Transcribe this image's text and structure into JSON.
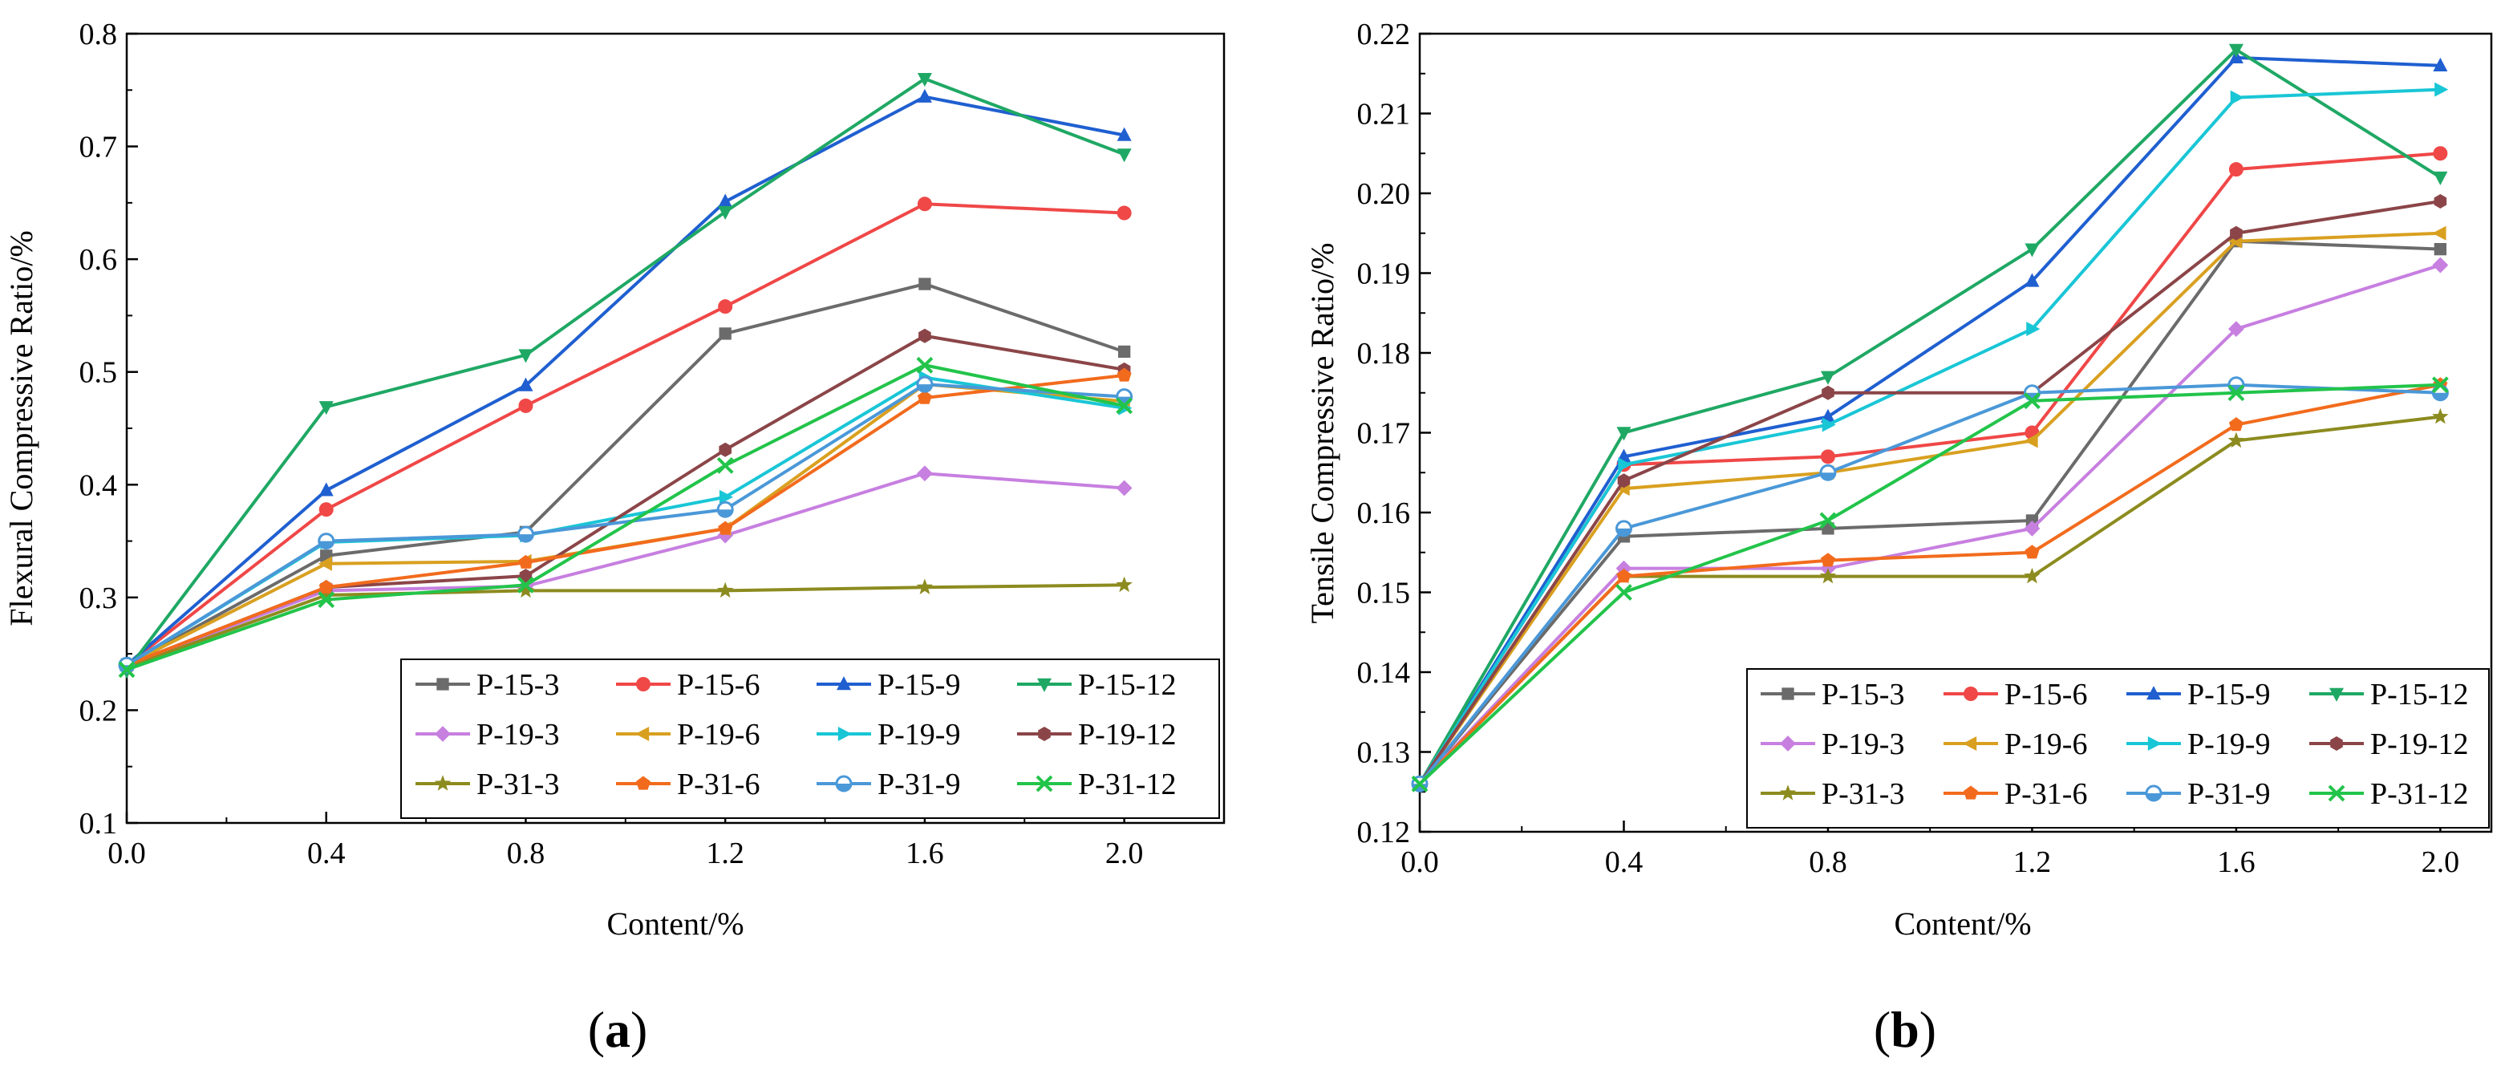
{
  "chart_data": [
    {
      "type": "line",
      "panel_label": "(a)",
      "panel_label_parts": [
        "(",
        "a",
        ")"
      ],
      "xlabel": "Content/%",
      "ylabel": "Flexural Compressive Ratio/%",
      "xlim": [
        0.0,
        2.2
      ],
      "ylim": [
        0.1,
        0.8
      ],
      "x_ticks": [
        0.0,
        0.4,
        0.8,
        1.2,
        1.6,
        2.0
      ],
      "x_tick_labels": [
        "0.0",
        "0.4",
        "0.8",
        "1.2",
        "1.6",
        "2.0"
      ],
      "y_ticks": [
        0.1,
        0.2,
        0.3,
        0.4,
        0.5,
        0.6,
        0.7,
        0.8
      ],
      "y_tick_labels": [
        "0.1",
        "0.2",
        "0.3",
        "0.4",
        "0.5",
        "0.6",
        "0.7",
        "0.8"
      ],
      "grid": false,
      "legend_position": "bottom-right",
      "x": [
        0.0,
        0.4,
        0.8,
        1.2,
        1.6,
        2.0
      ],
      "series": [
        {
          "name": "P-15-3",
          "color": "#6b6b6b",
          "marker": "square",
          "values": [
            0.24,
            0.337,
            0.358,
            0.534,
            0.578,
            0.518
          ]
        },
        {
          "name": "P-15-6",
          "color": "#f04747",
          "marker": "circle",
          "values": [
            0.24,
            0.378,
            0.47,
            0.558,
            0.649,
            0.641
          ]
        },
        {
          "name": "P-15-9",
          "color": "#1f5fd0",
          "marker": "triangle-up",
          "values": [
            0.24,
            0.395,
            0.488,
            0.651,
            0.744,
            0.71
          ]
        },
        {
          "name": "P-15-12",
          "color": "#1fa864",
          "marker": "triangle-down",
          "values": [
            0.235,
            0.469,
            0.515,
            0.642,
            0.76,
            0.693
          ]
        },
        {
          "name": "P-19-3",
          "color": "#c77fe0",
          "marker": "diamond",
          "values": [
            0.24,
            0.306,
            0.31,
            0.355,
            0.41,
            0.397
          ]
        },
        {
          "name": "P-19-6",
          "color": "#d9a020",
          "marker": "triangle-left",
          "values": [
            0.24,
            0.33,
            0.332,
            0.361,
            0.489,
            0.474
          ]
        },
        {
          "name": "P-19-9",
          "color": "#19c6d6",
          "marker": "triangle-right",
          "values": [
            0.24,
            0.349,
            0.355,
            0.389,
            0.495,
            0.468
          ]
        },
        {
          "name": "P-19-12",
          "color": "#8b4548",
          "marker": "hexagon",
          "values": [
            0.24,
            0.309,
            0.319,
            0.431,
            0.532,
            0.502
          ]
        },
        {
          "name": "P-31-3",
          "color": "#8c8b1f",
          "marker": "star",
          "values": [
            0.238,
            0.302,
            0.306,
            0.306,
            0.309,
            0.311
          ]
        },
        {
          "name": "P-31-6",
          "color": "#f26b1d",
          "marker": "pentagon",
          "values": [
            0.24,
            0.309,
            0.331,
            0.361,
            0.477,
            0.497
          ]
        },
        {
          "name": "P-31-9",
          "color": "#4a98d8",
          "marker": "half-circle",
          "values": [
            0.24,
            0.35,
            0.356,
            0.378,
            0.489,
            0.478
          ]
        },
        {
          "name": "P-31-12",
          "color": "#22c44a",
          "marker": "x",
          "values": [
            0.236,
            0.298,
            0.311,
            0.417,
            0.506,
            0.47
          ]
        }
      ]
    },
    {
      "type": "line",
      "panel_label": "(b)",
      "panel_label_parts": [
        "(",
        "b",
        ")"
      ],
      "xlabel": "Content/%",
      "ylabel": "Tensile Compressive Ratio/%",
      "xlim": [
        0.0,
        2.1
      ],
      "ylim": [
        0.12,
        0.22
      ],
      "x_ticks": [
        0.0,
        0.4,
        0.8,
        1.2,
        1.6,
        2.0
      ],
      "x_tick_labels": [
        "0.0",
        "0.4",
        "0.8",
        "1.2",
        "1.6",
        "2.0"
      ],
      "y_ticks": [
        0.12,
        0.13,
        0.14,
        0.15,
        0.16,
        0.17,
        0.18,
        0.19,
        0.2,
        0.21,
        0.22
      ],
      "y_tick_labels": [
        "0.12",
        "0.13",
        "0.14",
        "0.15",
        "0.16",
        "0.17",
        "0.18",
        "0.19",
        "0.20",
        "0.21",
        "0.22"
      ],
      "grid": false,
      "legend_position": "bottom-right",
      "x": [
        0.0,
        0.4,
        0.8,
        1.2,
        1.6,
        2.0
      ],
      "series": [
        {
          "name": "P-15-3",
          "color": "#6b6b6b",
          "marker": "square",
          "values": [
            0.126,
            0.157,
            0.158,
            0.159,
            0.194,
            0.193
          ]
        },
        {
          "name": "P-15-6",
          "color": "#f04747",
          "marker": "circle",
          "values": [
            0.126,
            0.166,
            0.167,
            0.17,
            0.203,
            0.205
          ]
        },
        {
          "name": "P-15-9",
          "color": "#1f5fd0",
          "marker": "triangle-up",
          "values": [
            0.126,
            0.167,
            0.172,
            0.189,
            0.217,
            0.216
          ]
        },
        {
          "name": "P-15-12",
          "color": "#1fa864",
          "marker": "triangle-down",
          "values": [
            0.126,
            0.17,
            0.177,
            0.193,
            0.218,
            0.202
          ]
        },
        {
          "name": "P-19-3",
          "color": "#c77fe0",
          "marker": "diamond",
          "values": [
            0.126,
            0.153,
            0.153,
            0.158,
            0.183,
            0.191
          ]
        },
        {
          "name": "P-19-6",
          "color": "#d9a020",
          "marker": "triangle-left",
          "values": [
            0.126,
            0.163,
            0.165,
            0.169,
            0.194,
            0.195
          ]
        },
        {
          "name": "P-19-9",
          "color": "#19c6d6",
          "marker": "triangle-right",
          "values": [
            0.126,
            0.166,
            0.171,
            0.183,
            0.212,
            0.213
          ]
        },
        {
          "name": "P-19-12",
          "color": "#8b4548",
          "marker": "hexagon",
          "values": [
            0.126,
            0.164,
            0.175,
            0.175,
            0.195,
            0.199
          ]
        },
        {
          "name": "P-31-3",
          "color": "#8c8b1f",
          "marker": "star",
          "values": [
            0.126,
            0.152,
            0.152,
            0.152,
            0.169,
            0.172
          ]
        },
        {
          "name": "P-31-6",
          "color": "#f26b1d",
          "marker": "pentagon",
          "values": [
            0.126,
            0.152,
            0.154,
            0.155,
            0.171,
            0.176
          ]
        },
        {
          "name": "P-31-9",
          "color": "#4a98d8",
          "marker": "half-circle",
          "values": [
            0.126,
            0.158,
            0.165,
            0.175,
            0.176,
            0.175
          ]
        },
        {
          "name": "P-31-12",
          "color": "#22c44a",
          "marker": "x",
          "values": [
            0.126,
            0.15,
            0.159,
            0.174,
            0.175,
            0.176
          ]
        }
      ]
    }
  ]
}
